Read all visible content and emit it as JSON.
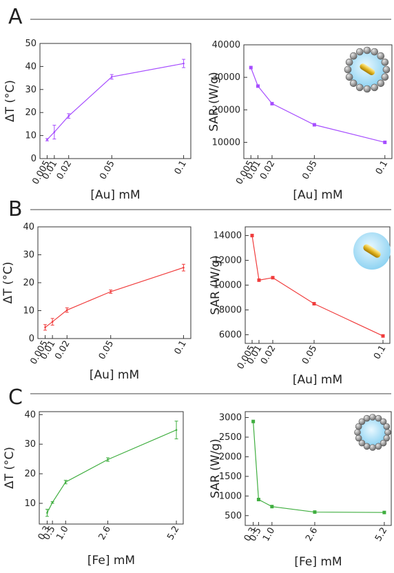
{
  "panels": [
    {
      "letter": "A"
    },
    {
      "letter": "B"
    },
    {
      "letter": "C"
    }
  ],
  "chart_data": [
    {
      "id": "A-left",
      "type": "line",
      "color": "#a64dff",
      "xlabel": "[Au] mM",
      "ylabel": "ΔT (°C)",
      "x_ticks": [
        "0.005",
        "0.01",
        "0.02",
        "0.05",
        "0.1"
      ],
      "y_ticks": [
        "0",
        "10",
        "20",
        "30",
        "40",
        "50"
      ],
      "xlim": [
        0,
        0.105
      ],
      "ylim": [
        0,
        50
      ],
      "series": [
        {
          "x": [
            0.005,
            0.01,
            0.02,
            0.05,
            0.1
          ],
          "y": [
            8.2,
            11.5,
            18.5,
            35.5,
            41.3
          ],
          "err": [
            0.5,
            3.0,
            1.0,
            1.0,
            1.8
          ]
        }
      ]
    },
    {
      "id": "A-right",
      "type": "line",
      "color": "#a64dff",
      "xlabel": "[Au] mM",
      "ylabel": "SAR (W/g)",
      "x_ticks": [
        "0.005",
        "0.01",
        "0.02",
        "0.05",
        "0.1"
      ],
      "y_ticks": [
        "10000",
        "20000",
        "30000",
        "40000"
      ],
      "xlim": [
        0,
        0.105
      ],
      "ylim": [
        5000,
        40000
      ],
      "series": [
        {
          "x": [
            0.005,
            0.01,
            0.02,
            0.05,
            0.1
          ],
          "y": [
            33000,
            27300,
            21900,
            15400,
            10000
          ]
        }
      ],
      "inset": "nanoparticle-shell"
    },
    {
      "id": "B-left",
      "type": "line",
      "color": "#f03c3c",
      "xlabel": "[Au] mM",
      "ylabel": "ΔT (°C)",
      "x_ticks": [
        "0.005",
        "0.01",
        "0.02",
        "0.05",
        "0.1"
      ],
      "y_ticks": [
        "0",
        "10",
        "20",
        "30",
        "40"
      ],
      "xlim": [
        0,
        0.105
      ],
      "ylim": [
        0,
        40
      ],
      "series": [
        {
          "x": [
            0.005,
            0.01,
            0.02,
            0.05,
            0.1
          ],
          "y": [
            4.0,
            6.0,
            10.2,
            16.8,
            25.4
          ],
          "err": [
            1.0,
            1.2,
            0.8,
            0.6,
            1.2
          ]
        }
      ]
    },
    {
      "id": "B-right",
      "type": "line",
      "color": "#f03c3c",
      "xlabel": "[Au] mM",
      "ylabel": "SAR (W/g)",
      "x_ticks": [
        "0.005",
        "0.01",
        "0.02",
        "0.05",
        "0.1"
      ],
      "y_ticks": [
        "6000",
        "8000",
        "10000",
        "12000",
        "14000"
      ],
      "xlim": [
        0,
        0.105
      ],
      "ylim": [
        5300,
        14700
      ],
      "series": [
        {
          "x": [
            0.005,
            0.01,
            0.02,
            0.05,
            0.1
          ],
          "y": [
            14000,
            10400,
            10600,
            8500,
            5900
          ]
        }
      ],
      "inset": "gold-nanorod"
    },
    {
      "id": "C-left",
      "type": "line",
      "color": "#3fae3f",
      "xlabel": "[Fe] mM",
      "ylabel": "ΔT (°C)",
      "x_ticks": [
        "0.3",
        "0.5",
        "1.0",
        "2.6",
        "5.2"
      ],
      "y_ticks": [
        "10",
        "20",
        "30",
        "40"
      ],
      "xlim": [
        0,
        5.46
      ],
      "ylim": [
        3,
        41
      ],
      "series": [
        {
          "x": [
            0.3,
            0.5,
            1.0,
            2.6,
            5.2
          ],
          "y": [
            6.8,
            10.3,
            17.2,
            24.8,
            34.8
          ],
          "err": [
            1.2,
            0.3,
            0.6,
            0.6,
            3.0
          ]
        }
      ]
    },
    {
      "id": "C-right",
      "type": "line",
      "color": "#3fae3f",
      "xlabel": "[Fe] mM",
      "ylabel": "SAR (W/g)",
      "x_ticks": [
        "0.3",
        "0.5",
        "1.0",
        "2.6",
        "5.2"
      ],
      "y_ticks": [
        "500",
        "1000",
        "1500",
        "2000",
        "2500",
        "3000"
      ],
      "xlim": [
        0,
        5.46
      ],
      "ylim": [
        250,
        3150
      ],
      "series": [
        {
          "x": [
            0.3,
            0.5,
            1.0,
            2.6,
            5.2
          ],
          "y": [
            2900,
            910,
            730,
            590,
            580
          ]
        }
      ],
      "inset": "particle-ring"
    }
  ]
}
